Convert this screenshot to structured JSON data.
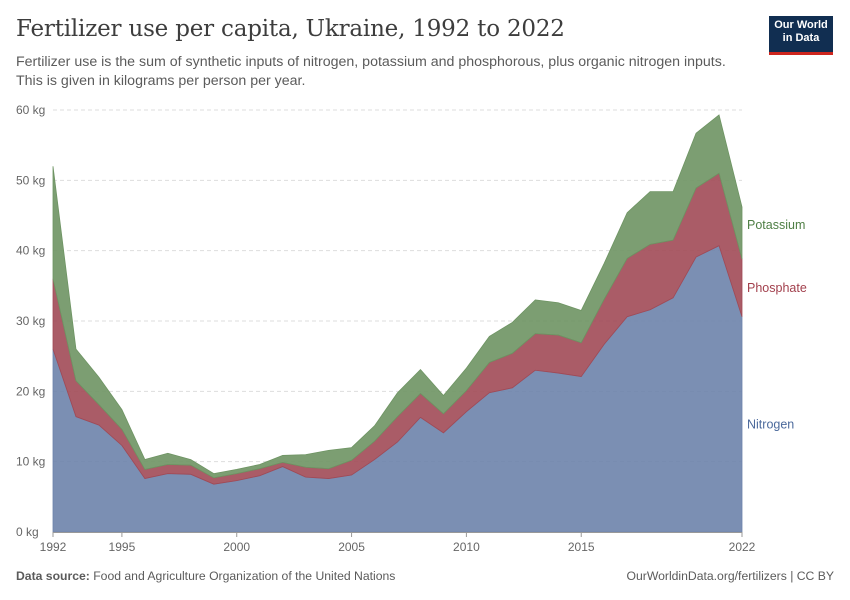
{
  "header": {
    "title": "Fertilizer use per capita, Ukraine, 1992 to 2022",
    "subtitle": "Fertilizer use is the sum of synthetic inputs of nitrogen, potassium and phosphorous, plus organic nitrogen inputs. This is given in kilograms per person per year.",
    "logo_line1": "Our World",
    "logo_line2": "in Data"
  },
  "footer": {
    "source_label": "Data source:",
    "source_text": "Food and Agriculture Organization of the United Nations",
    "credit": "OurWorldinData.org/fertilizers | CC BY"
  },
  "colors": {
    "nitrogen": "#6d83ab",
    "phosphate": "#a14a56",
    "potassium": "#6e9463",
    "nitrogen_label": "#4c6a9c",
    "phosphate_label": "#a2404d",
    "potassium_label": "#4f7f45"
  },
  "chart_data": {
    "type": "area",
    "stacked": true,
    "title": "Fertilizer use per capita, Ukraine, 1992 to 2022",
    "ylabel": "kg per person per year",
    "xlim": [
      1992,
      2022
    ],
    "ylim": [
      0,
      60
    ],
    "y_ticks": [
      0,
      10,
      20,
      30,
      40,
      50,
      60
    ],
    "y_tick_labels": [
      "0 kg",
      "10 kg",
      "20 kg",
      "30 kg",
      "40 kg",
      "50 kg",
      "60 kg"
    ],
    "x_ticks": [
      1992,
      1995,
      2000,
      2005,
      2010,
      2015,
      2022
    ],
    "x_tick_labels": [
      "1992",
      "1995",
      "2000",
      "2005",
      "2010",
      "2015",
      "2022"
    ],
    "grid": "horizontal-dashed",
    "x": [
      1992,
      1993,
      1994,
      1995,
      1996,
      1997,
      1998,
      1999,
      2000,
      2001,
      2002,
      2003,
      2004,
      2005,
      2006,
      2007,
      2008,
      2009,
      2010,
      2011,
      2012,
      2013,
      2014,
      2015,
      2016,
      2017,
      2018,
      2019,
      2020,
      2021,
      2022
    ],
    "series": [
      {
        "name": "Nitrogen",
        "values": [
          26.0,
          16.4,
          15.2,
          12.3,
          7.6,
          8.3,
          8.2,
          6.8,
          7.3,
          8.0,
          9.3,
          7.8,
          7.6,
          8.1,
          10.3,
          12.8,
          16.3,
          14.1,
          17.1,
          19.8,
          20.5,
          23.0,
          22.6,
          22.1,
          26.7,
          30.6,
          31.6,
          33.3,
          39.1,
          40.7,
          30.6
        ]
      },
      {
        "name": "Phosphate",
        "values": [
          10.0,
          5.1,
          2.9,
          2.3,
          1.3,
          1.3,
          1.3,
          0.9,
          1.0,
          1.0,
          0.6,
          1.4,
          1.4,
          2.1,
          2.6,
          3.6,
          3.4,
          2.7,
          3.0,
          4.3,
          4.9,
          5.2,
          5.4,
          4.8,
          6.4,
          8.3,
          9.3,
          8.2,
          9.8,
          10.3,
          8.2
        ]
      },
      {
        "name": "Potassium",
        "values": [
          16.0,
          4.5,
          3.9,
          2.8,
          1.4,
          1.6,
          0.8,
          0.6,
          0.6,
          0.6,
          1.0,
          1.8,
          2.6,
          1.8,
          2.2,
          3.4,
          3.4,
          2.6,
          3.2,
          3.7,
          4.4,
          4.8,
          4.6,
          4.6,
          5.1,
          6.5,
          7.5,
          6.9,
          7.8,
          8.3,
          7.4
        ]
      }
    ]
  }
}
